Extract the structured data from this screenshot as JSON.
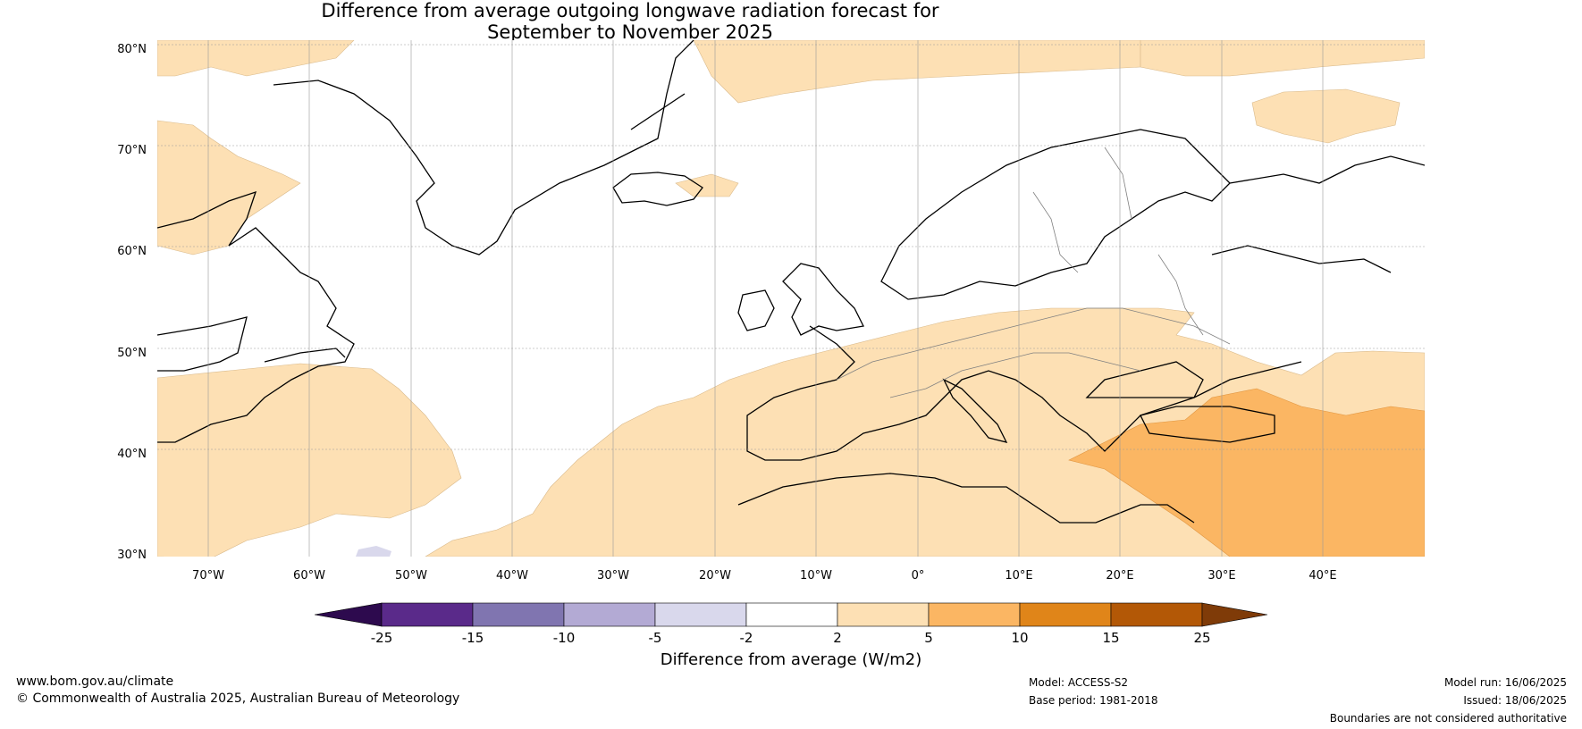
{
  "title_line1": "Difference from average outgoing longwave radiation forecast for",
  "title_line2": "September to November 2025",
  "lat_labels": [
    "80°N",
    "70°N",
    "60°N",
    "50°N",
    "40°N",
    "30°N"
  ],
  "lon_labels": [
    "70°W",
    "60°W",
    "50°W",
    "40°W",
    "30°W",
    "20°W",
    "10°W",
    "0°",
    "10°E",
    "20°E",
    "30°E",
    "40°E"
  ],
  "colorbar": {
    "ticks": [
      "-25",
      "-15",
      "-10",
      "-5",
      "-2",
      "2",
      "5",
      "10",
      "15",
      "25"
    ],
    "colors": [
      "#2d0a4e",
      "#5a2a8a",
      "#8075b0",
      "#b3aad4",
      "#d9d8ec",
      "#ffffff",
      "#fde0b4",
      "#fbb663",
      "#e08519",
      "#b35806",
      "#7f3b08"
    ],
    "label": "Difference from average (W/m2)"
  },
  "map": {
    "anomaly_colors": {
      "light_orange": "#fde0b4",
      "orange": "#fbb663",
      "light_purple": "#d9d8ec"
    },
    "land_outline_color": "#000000",
    "border_color": "#808080"
  },
  "footer": {
    "website": "www.bom.gov.au/climate",
    "copyright": "© Commonwealth of Australia 2025, Australian Bureau of Meteorology",
    "model": "Model: ACCESS-S2",
    "base_period": "Base period: 1981-2018",
    "model_run": "Model run: 16/06/2025",
    "issued": "Issued: 18/06/2025",
    "disclaimer": "Boundaries are not considered authoritative"
  }
}
